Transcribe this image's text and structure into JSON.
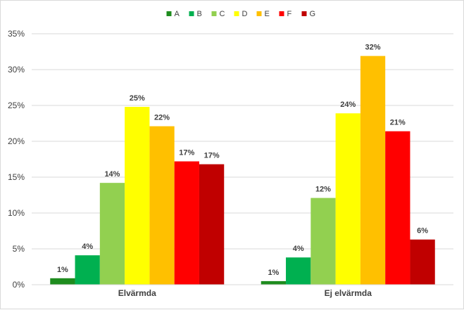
{
  "chart_data": {
    "type": "bar",
    "categories": [
      "Elvärmda",
      "Ej elvärmda"
    ],
    "series": [
      {
        "name": "A",
        "color": "#1e8c1e",
        "values": [
          0.9,
          0.5
        ],
        "labels": [
          "1%",
          "1%"
        ]
      },
      {
        "name": "B",
        "color": "#00b050",
        "values": [
          4.1,
          3.8
        ],
        "labels": [
          "4%",
          "4%"
        ]
      },
      {
        "name": "C",
        "color": "#92d050",
        "values": [
          14.2,
          12.1
        ],
        "labels": [
          "14%",
          "12%"
        ]
      },
      {
        "name": "D",
        "color": "#ffff00",
        "values": [
          24.8,
          23.9
        ],
        "labels": [
          "25%",
          "24%"
        ]
      },
      {
        "name": "E",
        "color": "#ffc000",
        "values": [
          22.1,
          31.9
        ],
        "labels": [
          "22%",
          "32%"
        ]
      },
      {
        "name": "F",
        "color": "#ff0000",
        "values": [
          17.2,
          21.4
        ],
        "labels": [
          "17%",
          "21%"
        ]
      },
      {
        "name": "G",
        "color": "#c00000",
        "values": [
          16.8,
          6.3
        ],
        "labels": [
          "17%",
          "6%"
        ]
      }
    ],
    "yticks": [
      "0%",
      "5%",
      "10%",
      "15%",
      "20%",
      "25%",
      "30%",
      "35%"
    ],
    "ylim": [
      0,
      35
    ],
    "grid": true,
    "legend_position": "top",
    "gridline_color": "#d9d9d9",
    "text_color": "#404040"
  }
}
